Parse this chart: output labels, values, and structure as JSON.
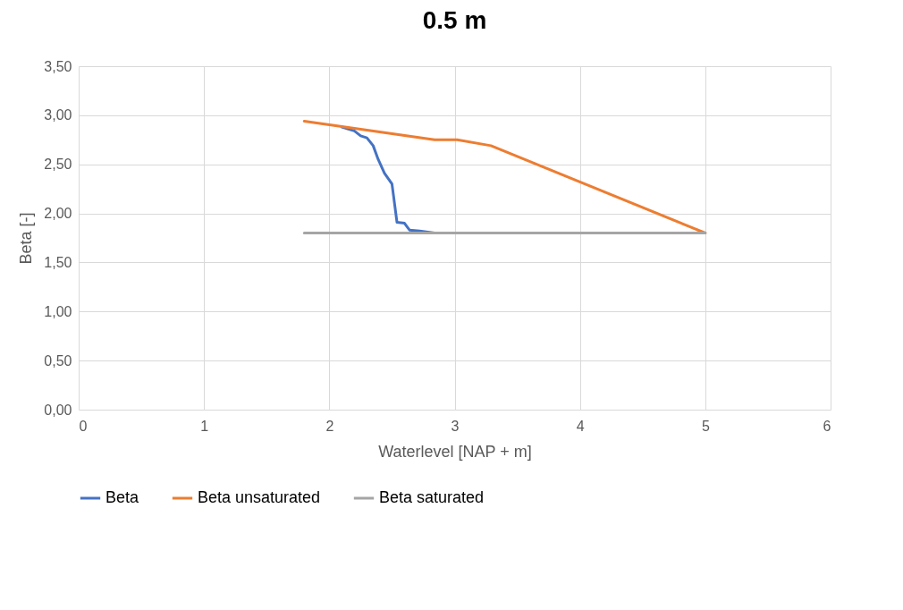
{
  "chart_data": {
    "type": "line",
    "title": "0.5 m",
    "xlabel": "Waterlevel [NAP + m]",
    "ylabel": "Beta [-]",
    "xlim": [
      0,
      6
    ],
    "xticks": [
      0,
      1,
      2,
      3,
      4,
      5,
      6
    ],
    "ylim": [
      0,
      3.5
    ],
    "yticks": [
      {
        "value": 0,
        "label": "0,00"
      },
      {
        "value": 0.5,
        "label": "0,50"
      },
      {
        "value": 1,
        "label": "1,00"
      },
      {
        "value": 1.5,
        "label": "1,50"
      },
      {
        "value": 2,
        "label": "2,00"
      },
      {
        "value": 2.5,
        "label": "2,50"
      },
      {
        "value": 3,
        "label": "3,00"
      },
      {
        "value": 3.5,
        "label": "3,50"
      }
    ],
    "grid": true,
    "legend": "bottom",
    "marker": "none",
    "line_style": "solid",
    "series": [
      {
        "name": "Beta",
        "color": "#4472c4",
        "x": [
          2.1,
          2.2,
          2.25,
          2.3,
          2.35,
          2.39,
          2.44,
          2.5,
          2.54,
          2.6,
          2.64,
          2.72,
          2.84
        ],
        "values": [
          2.88,
          2.84,
          2.79,
          2.77,
          2.69,
          2.55,
          2.41,
          2.3,
          1.91,
          1.9,
          1.83,
          1.82,
          1.8
        ]
      },
      {
        "name": "Beta unsaturated",
        "color": "#ed7d31",
        "x": [
          1.8,
          2.84,
          3.02,
          3.29,
          5
        ],
        "values": [
          2.94,
          2.75,
          2.75,
          2.69,
          1.8
        ]
      },
      {
        "name": "Beta saturated",
        "color": "#a5a5a5",
        "x": [
          1.8,
          5
        ],
        "values": [
          1.8,
          1.8
        ]
      }
    ]
  }
}
